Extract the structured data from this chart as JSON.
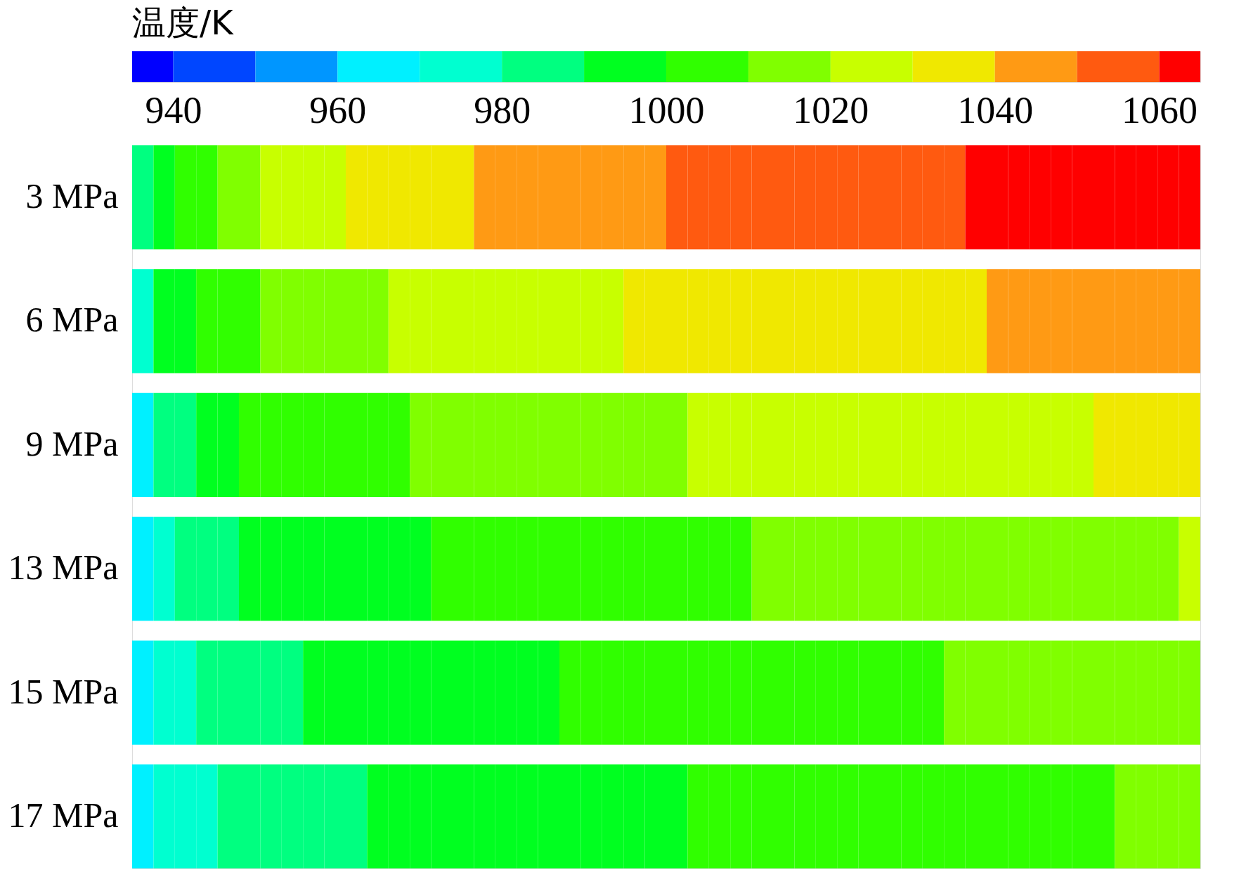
{
  "chart_data": {
    "type": "heatmap",
    "clabel": "温度/K",
    "categories": [
      null,
      null,
      null,
      null,
      null,
      null,
      null,
      null,
      null,
      null,
      null,
      null,
      null,
      null,
      null,
      null,
      null,
      null,
      null,
      null,
      null,
      null,
      null,
      null,
      null,
      null,
      null,
      null,
      null,
      null,
      null,
      null,
      null,
      null,
      null,
      null,
      null,
      null,
      null,
      null,
      null,
      null,
      null,
      null,
      null,
      null,
      null,
      null,
      null,
      null
    ],
    "y_categories": [
      "3 MPa",
      "6 MPa",
      "9 MPa",
      "13 MPa",
      "15 MPa",
      "17 MPa"
    ],
    "cells": [
      [
        985,
        995,
        1005,
        1005,
        1015,
        1015,
        1025,
        1025,
        1025,
        1025,
        1035,
        1035,
        1035,
        1035,
        1035,
        1035,
        1045,
        1045,
        1045,
        1045,
        1045,
        1045,
        1045,
        1045,
        1045,
        1055,
        1055,
        1055,
        1055,
        1055,
        1055,
        1055,
        1055,
        1055,
        1055,
        1055,
        1055,
        1055,
        1055,
        1062,
        1062,
        1062,
        1062,
        1062,
        1062,
        1062,
        1062,
        1062,
        1062,
        1062
      ],
      [
        975,
        995,
        995,
        1005,
        1005,
        1005,
        1015,
        1015,
        1015,
        1015,
        1015,
        1015,
        1025,
        1025,
        1025,
        1025,
        1025,
        1025,
        1025,
        1025,
        1025,
        1025,
        1025,
        1035,
        1035,
        1035,
        1035,
        1035,
        1035,
        1035,
        1035,
        1035,
        1035,
        1035,
        1035,
        1035,
        1035,
        1035,
        1035,
        1035,
        1045,
        1045,
        1045,
        1045,
        1045,
        1045,
        1045,
        1045,
        1045,
        1045
      ],
      [
        965,
        985,
        985,
        995,
        995,
        1005,
        1005,
        1005,
        1005,
        1005,
        1005,
        1005,
        1005,
        1015,
        1015,
        1015,
        1015,
        1015,
        1015,
        1015,
        1015,
        1015,
        1015,
        1015,
        1015,
        1015,
        1025,
        1025,
        1025,
        1025,
        1025,
        1025,
        1025,
        1025,
        1025,
        1025,
        1025,
        1025,
        1025,
        1025,
        1025,
        1025,
        1025,
        1025,
        1025,
        1035,
        1035,
        1035,
        1035,
        1035
      ],
      [
        965,
        975,
        985,
        985,
        985,
        995,
        995,
        995,
        995,
        995,
        995,
        995,
        995,
        995,
        1005,
        1005,
        1005,
        1005,
        1005,
        1005,
        1005,
        1005,
        1005,
        1005,
        1005,
        1005,
        1005,
        1005,
        1005,
        1015,
        1015,
        1015,
        1015,
        1015,
        1015,
        1015,
        1015,
        1015,
        1015,
        1015,
        1015,
        1015,
        1015,
        1015,
        1015,
        1015,
        1015,
        1015,
        1015,
        1025
      ],
      [
        965,
        975,
        975,
        985,
        985,
        985,
        985,
        985,
        995,
        995,
        995,
        995,
        995,
        995,
        995,
        995,
        995,
        995,
        995,
        995,
        1005,
        1005,
        1005,
        1005,
        1005,
        1005,
        1005,
        1005,
        1005,
        1005,
        1005,
        1005,
        1005,
        1005,
        1005,
        1005,
        1005,
        1005,
        1015,
        1015,
        1015,
        1015,
        1015,
        1015,
        1015,
        1015,
        1015,
        1015,
        1015,
        1015
      ],
      [
        965,
        975,
        975,
        975,
        985,
        985,
        985,
        985,
        985,
        985,
        985,
        995,
        995,
        995,
        995,
        995,
        995,
        995,
        995,
        995,
        995,
        995,
        995,
        995,
        995,
        995,
        1005,
        1005,
        1005,
        1005,
        1005,
        1005,
        1005,
        1005,
        1005,
        1005,
        1005,
        1005,
        1005,
        1005,
        1005,
        1005,
        1005,
        1005,
        1005,
        1005,
        1015,
        1015,
        1015,
        1015
      ]
    ],
    "clim": [
      935,
      1065
    ],
    "cticks": [
      940,
      960,
      980,
      1000,
      1020,
      1040,
      1060
    ],
    "colors": [
      "#0000ff",
      "#0046ff",
      "#0096ff",
      "#00f0ff",
      "#00ffd0",
      "#00ff80",
      "#00ff20",
      "#30ff00",
      "#80ff00",
      "#c8ff00",
      "#f0e800",
      "#ff9a14",
      "#ff5a10",
      "#ff0000"
    ]
  }
}
